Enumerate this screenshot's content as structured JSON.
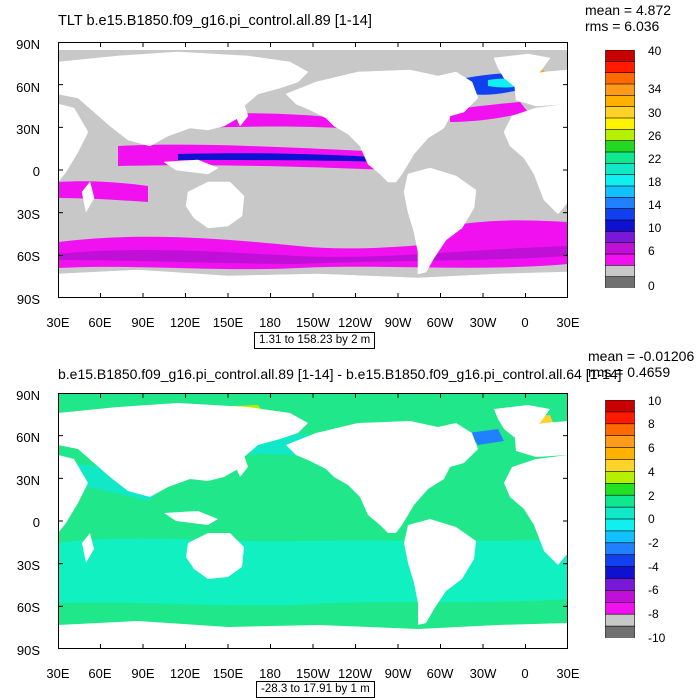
{
  "chart_data": [
    {
      "type": "heatmap",
      "title": "TLT b.e15.B1850.f09_g16.pi_control.all.89 [1-14]",
      "stats": {
        "mean": "mean = 4.872",
        "rms": "rms = 6.036"
      },
      "range_note": "1.31 to 158.23 by 2 m",
      "y_ticks": [
        "90N",
        "60N",
        "30N",
        "0",
        "30S",
        "60S",
        "90S"
      ],
      "x_ticks": [
        "30E",
        "60E",
        "90E",
        "120E",
        "150E",
        "180",
        "150W",
        "120W",
        "90W",
        "60W",
        "30W",
        "0",
        "30E"
      ],
      "colorbar": {
        "labels": [
          "40",
          "34",
          "30",
          "26",
          "22",
          "18",
          "14",
          "10",
          "6",
          "0"
        ],
        "colors": [
          "#c80000",
          "#ff1a00",
          "#ff6a00",
          "#ff9a1a",
          "#ffb000",
          "#ffd22a",
          "#fff200",
          "#b6f000",
          "#22d822",
          "#10e890",
          "#10e8c8",
          "#10f0f0",
          "#10c0ff",
          "#2080ff",
          "#1040f0",
          "#1010d0",
          "#7a18d8",
          "#c010d8",
          "#f010f0",
          "#c8c8c8",
          "#707070"
        ]
      },
      "land_color": "#ffffff",
      "missing_color": "#c8c8c8"
    },
    {
      "type": "heatmap",
      "title": "b.e15.B1850.f09_g16.pi_control.all.89 [1-14] - b.e15.B1850.f09_g16.pi_control.all.64 [1-14]",
      "stats": {
        "mean": "mean = -0.01206",
        "rms": "rms = 0.4659"
      },
      "range_note": "-28.3 to 17.91 by 1 m",
      "y_ticks": [
        "90N",
        "60N",
        "30N",
        "0",
        "30S",
        "60S",
        "90S"
      ],
      "x_ticks": [
        "30E",
        "60E",
        "90E",
        "120E",
        "150E",
        "180",
        "150W",
        "120W",
        "90W",
        "60W",
        "30W",
        "0",
        "30E"
      ],
      "colorbar": {
        "labels": [
          "10",
          "8",
          "6",
          "4",
          "2",
          "0",
          "-2",
          "-4",
          "-6",
          "-8",
          "-10"
        ],
        "colors": [
          "#c80000",
          "#ff1a00",
          "#ff6a00",
          "#ff9a1a",
          "#ffb000",
          "#ffd22a",
          "#b6f000",
          "#22e022",
          "#10e890",
          "#10e8c8",
          "#10f0f0",
          "#10c0ff",
          "#2080ff",
          "#1040f0",
          "#1010d0",
          "#7a18d8",
          "#c010d8",
          "#f010f0",
          "#c8c8c8",
          "#707070"
        ]
      },
      "land_color": "#ffffff",
      "ocean_color": "#20e88a"
    }
  ]
}
